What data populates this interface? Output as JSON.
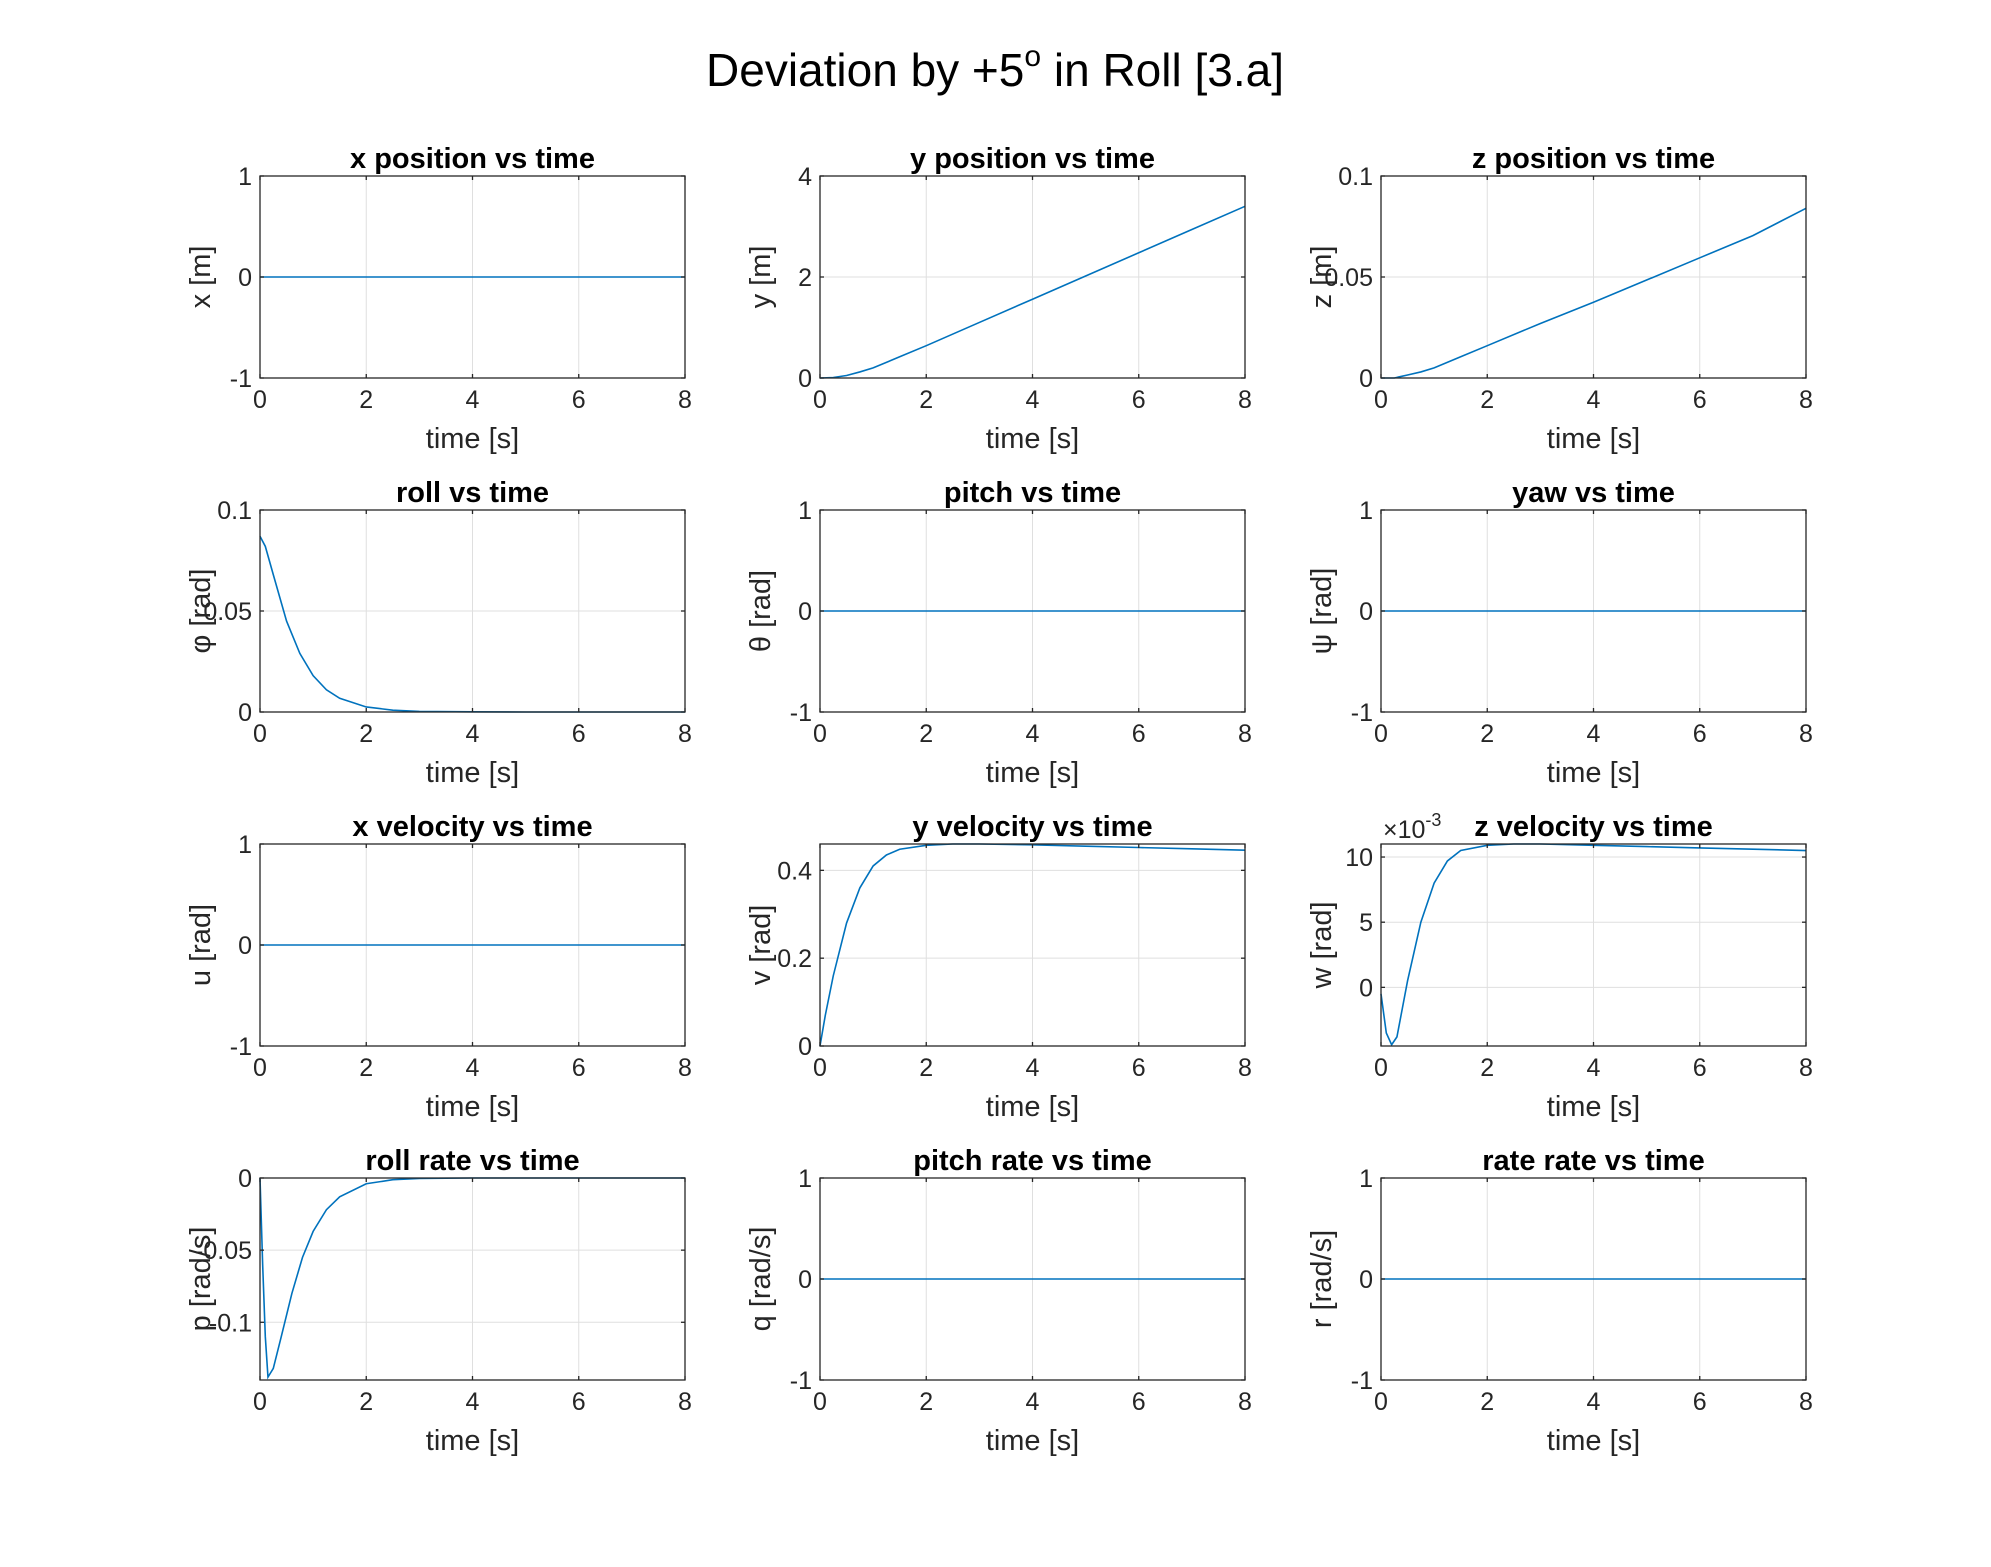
{
  "figure": {
    "title_main": "Deviation by +5",
    "title_sup": "o",
    "title_rest": " in Roll [3.a]"
  },
  "chart_data": [
    {
      "type": "line",
      "title": "x position vs time",
      "xlabel": "time [s]",
      "ylabel": "x [m]",
      "xlim": [
        0,
        8
      ],
      "ylim": [
        -1,
        1
      ],
      "xticks": [
        0,
        2,
        4,
        6,
        8
      ],
      "yticks": [
        -1,
        0,
        1
      ],
      "ytick_labels": [
        "-1",
        "0",
        "1"
      ],
      "grid": true,
      "color": "#0072BD",
      "x": [
        0,
        8
      ],
      "y": [
        0,
        0
      ]
    },
    {
      "type": "line",
      "title": "y position vs time",
      "xlabel": "time [s]",
      "ylabel": "y [m]",
      "xlim": [
        0,
        8
      ],
      "ylim": [
        0,
        4
      ],
      "xticks": [
        0,
        2,
        4,
        6,
        8
      ],
      "yticks": [
        0,
        2,
        4
      ],
      "ytick_labels": [
        "0",
        "2",
        "4"
      ],
      "grid": true,
      "color": "#0072BD",
      "x": [
        0,
        0.25,
        0.5,
        0.75,
        1,
        1.5,
        2,
        3,
        4,
        5,
        6,
        7,
        8
      ],
      "y": [
        0,
        0.01,
        0.05,
        0.12,
        0.2,
        0.42,
        0.64,
        1.1,
        1.56,
        2.02,
        2.48,
        2.94,
        3.4
      ]
    },
    {
      "type": "line",
      "title": "z position vs time",
      "xlabel": "time [s]",
      "ylabel": "z [m]",
      "xlim": [
        0,
        8
      ],
      "ylim": [
        0,
        0.1
      ],
      "xticks": [
        0,
        2,
        4,
        6,
        8
      ],
      "yticks": [
        0,
        0.05,
        0.1
      ],
      "ytick_labels": [
        "0",
        "0.05",
        "0.1"
      ],
      "grid": true,
      "color": "#0072BD",
      "x": [
        0,
        0.25,
        0.5,
        0.75,
        1,
        1.5,
        2,
        3,
        4,
        5,
        6,
        7,
        8
      ],
      "y": [
        0,
        0,
        0.0015,
        0.003,
        0.005,
        0.0105,
        0.016,
        0.027,
        0.0375,
        0.0485,
        0.0595,
        0.0705,
        0.084
      ]
    },
    {
      "type": "line",
      "title": "roll vs time",
      "xlabel": "time [s]",
      "ylabel": "φ [rad]",
      "xlim": [
        0,
        8
      ],
      "ylim": [
        0,
        0.1
      ],
      "xticks": [
        0,
        2,
        4,
        6,
        8
      ],
      "yticks": [
        0,
        0.05,
        0.1
      ],
      "ytick_labels": [
        "0",
        "0.05",
        "0.1"
      ],
      "grid": true,
      "color": "#0072BD",
      "x": [
        0,
        0.1,
        0.25,
        0.5,
        0.75,
        1,
        1.25,
        1.5,
        2,
        2.5,
        3,
        4,
        5,
        6,
        8
      ],
      "y": [
        0.087,
        0.082,
        0.068,
        0.045,
        0.029,
        0.018,
        0.011,
        0.0068,
        0.0025,
        0.0009,
        0.0003,
        0.0001,
        0,
        0,
        0
      ]
    },
    {
      "type": "line",
      "title": "pitch vs time",
      "xlabel": "time [s]",
      "ylabel": "θ [rad]",
      "xlim": [
        0,
        8
      ],
      "ylim": [
        -1,
        1
      ],
      "xticks": [
        0,
        2,
        4,
        6,
        8
      ],
      "yticks": [
        -1,
        0,
        1
      ],
      "ytick_labels": [
        "-1",
        "0",
        "1"
      ],
      "grid": true,
      "color": "#0072BD",
      "x": [
        0,
        8
      ],
      "y": [
        0,
        0
      ]
    },
    {
      "type": "line",
      "title": "yaw vs time",
      "xlabel": "time [s]",
      "ylabel": "ψ [rad]",
      "xlim": [
        0,
        8
      ],
      "ylim": [
        -1,
        1
      ],
      "xticks": [
        0,
        2,
        4,
        6,
        8
      ],
      "yticks": [
        -1,
        0,
        1
      ],
      "ytick_labels": [
        "-1",
        "0",
        "1"
      ],
      "grid": true,
      "color": "#0072BD",
      "x": [
        0,
        8
      ],
      "y": [
        0,
        0
      ]
    },
    {
      "type": "line",
      "title": "x velocity vs time",
      "xlabel": "time [s]",
      "ylabel": "u [rad]",
      "xlim": [
        0,
        8
      ],
      "ylim": [
        -1,
        1
      ],
      "xticks": [
        0,
        2,
        4,
        6,
        8
      ],
      "yticks": [
        -1,
        0,
        1
      ],
      "ytick_labels": [
        "-1",
        "0",
        "1"
      ],
      "grid": true,
      "color": "#0072BD",
      "x": [
        0,
        8
      ],
      "y": [
        0,
        0
      ]
    },
    {
      "type": "line",
      "title": "y velocity vs time",
      "xlabel": "time [s]",
      "ylabel": "v [rad]",
      "xlim": [
        0,
        8
      ],
      "ylim": [
        0,
        0.46
      ],
      "xticks": [
        0,
        2,
        4,
        6,
        8
      ],
      "yticks": [
        0,
        0.2,
        0.4
      ],
      "ytick_labels": [
        "0",
        "0.2",
        "0.4"
      ],
      "grid": true,
      "color": "#0072BD",
      "x": [
        0,
        0.1,
        0.25,
        0.5,
        0.75,
        1,
        1.25,
        1.5,
        2,
        2.5,
        3,
        4,
        5,
        6,
        7,
        8
      ],
      "y": [
        0,
        0.07,
        0.16,
        0.28,
        0.36,
        0.41,
        0.435,
        0.448,
        0.457,
        0.46,
        0.46,
        0.458,
        0.455,
        0.452,
        0.449,
        0.446
      ]
    },
    {
      "type": "line",
      "title": "z velocity vs time",
      "xlabel": "time [s]",
      "ylabel": "w [rad]",
      "xlim": [
        0,
        8
      ],
      "ylim": [
        -4.5,
        11
      ],
      "xticks": [
        0,
        2,
        4,
        6,
        8
      ],
      "yticks": [
        0,
        5,
        10
      ],
      "ytick_labels": [
        "0",
        "5",
        "10"
      ],
      "multiplier_base": "×10",
      "multiplier_exp": "-3",
      "grid": true,
      "color": "#0072BD",
      "x": [
        0,
        0.1,
        0.2,
        0.3,
        0.5,
        0.75,
        1,
        1.25,
        1.5,
        2,
        2.5,
        3,
        4,
        5,
        6,
        7,
        8
      ],
      "y": [
        -0.5,
        -3.5,
        -4.4,
        -3.8,
        0.5,
        5,
        8,
        9.7,
        10.5,
        10.9,
        11,
        11,
        10.9,
        10.8,
        10.7,
        10.6,
        10.5
      ]
    },
    {
      "type": "line",
      "title": "roll rate vs time",
      "xlabel": "time [s]",
      "ylabel": "p [rad/s]",
      "xlim": [
        0,
        8
      ],
      "ylim": [
        -0.14,
        0
      ],
      "xticks": [
        0,
        2,
        4,
        6,
        8
      ],
      "yticks": [
        -0.1,
        -0.05,
        0
      ],
      "ytick_labels": [
        "-0.1",
        "-0.05",
        "0"
      ],
      "grid": true,
      "color": "#0072BD",
      "x": [
        0,
        0.05,
        0.1,
        0.15,
        0.25,
        0.4,
        0.6,
        0.8,
        1,
        1.25,
        1.5,
        2,
        2.5,
        3,
        4,
        8
      ],
      "y": [
        0,
        -0.06,
        -0.11,
        -0.138,
        -0.132,
        -0.11,
        -0.08,
        -0.055,
        -0.037,
        -0.022,
        -0.013,
        -0.004,
        -0.0012,
        -0.0003,
        0,
        0
      ]
    },
    {
      "type": "line",
      "title": "pitch rate vs time",
      "xlabel": "time [s]",
      "ylabel": "q [rad/s]",
      "xlim": [
        0,
        8
      ],
      "ylim": [
        -1,
        1
      ],
      "xticks": [
        0,
        2,
        4,
        6,
        8
      ],
      "yticks": [
        -1,
        0,
        1
      ],
      "ytick_labels": [
        "-1",
        "0",
        "1"
      ],
      "grid": true,
      "color": "#0072BD",
      "x": [
        0,
        8
      ],
      "y": [
        0,
        0
      ]
    },
    {
      "type": "line",
      "title": "rate rate vs time",
      "xlabel": "time [s]",
      "ylabel": "r [rad/s]",
      "xlim": [
        0,
        8
      ],
      "ylim": [
        -1,
        1
      ],
      "xticks": [
        0,
        2,
        4,
        6,
        8
      ],
      "yticks": [
        -1,
        0,
        1
      ],
      "ytick_labels": [
        "-1",
        "0",
        "1"
      ],
      "grid": true,
      "color": "#0072BD",
      "x": [
        0,
        8
      ],
      "y": [
        0,
        0
      ]
    }
  ]
}
